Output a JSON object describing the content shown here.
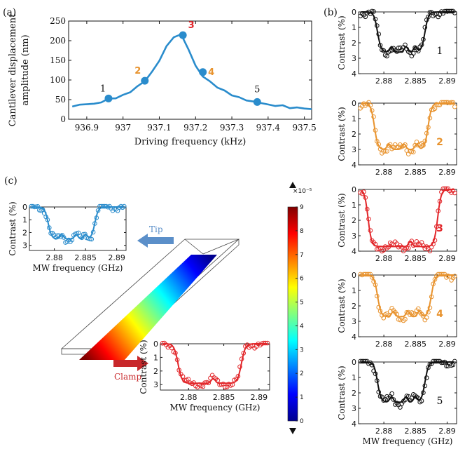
{
  "colors": {
    "blue": "#2a8ccc",
    "orange": "#e8932e",
    "red": "#e2262a",
    "black": "#111111",
    "tip_arrow": "#5b8fc9",
    "clamp_arrow": "#c8282b"
  },
  "panel_labels": {
    "a": "(a)",
    "b": "(b)",
    "c": "(c)"
  },
  "chart_data": [
    {
      "id": "a",
      "type": "line",
      "xlabel": "Driving frequency (kHz)",
      "ylabel_line1": "Cantilever displacement",
      "ylabel_line2": "amplitude (nm)",
      "xlim": [
        936.85,
        937.52
      ],
      "ylim": [
        0,
        250
      ],
      "xticks": [
        936.9,
        937.0,
        937.1,
        937.2,
        937.3,
        937.4,
        937.5
      ],
      "xtick_labels": [
        "936.9",
        "937",
        "937.1",
        "937.2",
        "937.3",
        "937.4",
        "937.5"
      ],
      "yticks": [
        0,
        50,
        100,
        150,
        200,
        250
      ],
      "ytick_labels": [
        "0",
        "50",
        "100",
        "150",
        "200",
        "250"
      ],
      "series": [
        {
          "color": "#2a8ccc",
          "x": [
            936.86,
            936.88,
            936.9,
            936.92,
            936.94,
            936.96,
            936.98,
            937.0,
            937.02,
            937.04,
            937.06,
            937.08,
            937.1,
            937.12,
            937.14,
            937.16,
            937.18,
            937.2,
            937.22,
            937.24,
            937.26,
            937.28,
            937.3,
            937.32,
            937.34,
            937.36,
            937.38,
            937.4,
            937.42,
            937.44,
            937.46,
            937.48,
            937.5,
            937.52
          ],
          "y": [
            35,
            36,
            38,
            40,
            44,
            50,
            56,
            61,
            70,
            83,
            98,
            120,
            150,
            185,
            210,
            215,
            180,
            135,
            110,
            95,
            82,
            72,
            62,
            55,
            49,
            44,
            41,
            38,
            35,
            33,
            31,
            29,
            27,
            26
          ]
        }
      ],
      "points": [
        {
          "label": "1",
          "x": 936.96,
          "y": 53,
          "color": "#2a8ccc",
          "label_color": "#111111"
        },
        {
          "label": "2",
          "x": 937.06,
          "y": 98,
          "color": "#2a8ccc",
          "label_color": "#e8932e"
        },
        {
          "label": "3",
          "x": 937.165,
          "y": 214,
          "color": "#2a8ccc",
          "label_color": "#e2262a"
        },
        {
          "label": "4",
          "x": 937.22,
          "y": 120,
          "color": "#2a8ccc",
          "label_color": "#e8932e"
        },
        {
          "label": "5",
          "x": 937.37,
          "y": 44,
          "color": "#2a8ccc",
          "label_color": "#111111"
        }
      ]
    },
    {
      "id": "b1",
      "type": "scatter",
      "index_label": "1",
      "color": "#111111",
      "ylabel": "Contrast (%)",
      "xlabel": "",
      "xlim": [
        2.876,
        2.8915
      ],
      "ylim": [
        0,
        4
      ],
      "xticks": [
        2.88,
        2.885,
        2.89
      ],
      "xtick_labels": [
        "2.88",
        "2.885",
        "2.89"
      ],
      "yticks": [
        0,
        1,
        2,
        3,
        4
      ],
      "ytick_labels": [
        "0",
        "1",
        "2",
        "3",
        "4"
      ],
      "dip": {
        "depth": 2.6,
        "start": 2.879,
        "end": 2.8865,
        "notches": [
          2.8812,
          2.8835,
          2.885
        ]
      }
    },
    {
      "id": "b2",
      "type": "scatter",
      "index_label": "2",
      "color": "#e8932e",
      "ylabel": "Contrast (%)",
      "xlabel": "",
      "xlim": [
        2.876,
        2.8915
      ],
      "ylim": [
        0,
        4
      ],
      "xticks": [
        2.88,
        2.885,
        2.89
      ],
      "xtick_labels": [
        "2.88",
        "2.885",
        "2.89"
      ],
      "yticks": [
        0,
        1,
        2,
        3,
        4
      ],
      "ytick_labels": [
        "0",
        "1",
        "2",
        "3",
        "4"
      ],
      "dip": {
        "depth": 3.0,
        "start": 2.8785,
        "end": 2.887,
        "notches": [
          2.8808,
          2.8832,
          2.8852
        ]
      }
    },
    {
      "id": "b3",
      "type": "scatter",
      "index_label": "3",
      "color": "#e2262a",
      "ylabel": "Contrast (%)",
      "xlabel": "",
      "xlim": [
        2.876,
        2.8915
      ],
      "ylim": [
        0,
        4
      ],
      "xticks": [
        2.88,
        2.885,
        2.89
      ],
      "xtick_labels": [
        "2.88",
        "2.885",
        "2.89"
      ],
      "yticks": [
        0,
        1,
        2,
        3,
        4
      ],
      "ytick_labels": [
        "0",
        "1",
        "2",
        "3",
        "4"
      ],
      "dip": {
        "depth": 3.7,
        "start": 2.8775,
        "end": 2.8885,
        "notches": [
          2.8842
        ]
      }
    },
    {
      "id": "b4",
      "type": "scatter",
      "index_label": "4",
      "color": "#e8932e",
      "ylabel": "Contrast (%)",
      "xlabel": "",
      "xlim": [
        2.876,
        2.8915
      ],
      "ylim": [
        0,
        4
      ],
      "xticks": [
        2.88,
        2.885,
        2.89
      ],
      "xtick_labels": [
        "2.88",
        "2.885",
        "2.89"
      ],
      "yticks": [
        0,
        1,
        2,
        3,
        4
      ],
      "ytick_labels": [
        "0",
        "1",
        "2",
        "3",
        "4"
      ],
      "dip": {
        "depth": 2.7,
        "start": 2.879,
        "end": 2.8875,
        "notches": [
          2.8815,
          2.8838,
          2.8856
        ]
      }
    },
    {
      "id": "b5",
      "type": "scatter",
      "index_label": "5",
      "color": "#111111",
      "ylabel": "Contrast (%)",
      "xlabel": "MW frequency (GHz)",
      "xlim": [
        2.876,
        2.8915
      ],
      "ylim": [
        0,
        4
      ],
      "xticks": [
        2.88,
        2.885,
        2.89
      ],
      "xtick_labels": [
        "2.88",
        "2.885",
        "2.89"
      ],
      "yticks": [
        0,
        1,
        2,
        3,
        4
      ],
      "ytick_labels": [
        "0",
        "1",
        "2",
        "3",
        "4"
      ],
      "dip": {
        "depth": 2.6,
        "start": 2.879,
        "end": 2.8865,
        "notches": [
          2.8812,
          2.8835,
          2.885
        ]
      }
    },
    {
      "id": "c_tip",
      "type": "scatter",
      "color": "#2a8ccc",
      "ylabel": "Contrast (%)",
      "xlabel": "MW frequency (GHz)",
      "xlim": [
        2.876,
        2.8915
      ],
      "ylim": [
        0,
        3.4
      ],
      "xticks": [
        2.88,
        2.885,
        2.89
      ],
      "xtick_labels": [
        "2.88",
        "2.885",
        "2.89"
      ],
      "yticks": [
        0,
        1,
        2,
        3
      ],
      "ytick_labels": [
        "0",
        "1",
        "2",
        "3"
      ],
      "dip": {
        "depth": 2.5,
        "start": 2.879,
        "end": 2.8865,
        "notches": [
          2.8812,
          2.8835,
          2.885
        ]
      }
    },
    {
      "id": "c_clamp",
      "type": "scatter",
      "color": "#e2262a",
      "ylabel": "Contrast (%)",
      "xlabel": "MW frequency (GHz)",
      "xlim": [
        2.876,
        2.8915
      ],
      "ylim": [
        0,
        3.4
      ],
      "xticks": [
        2.88,
        2.885,
        2.89
      ],
      "xtick_labels": [
        "2.88",
        "2.885",
        "2.89"
      ],
      "yticks": [
        0,
        1,
        2,
        3
      ],
      "ytick_labels": [
        "0",
        "1",
        "2",
        "3"
      ],
      "dip": {
        "depth": 2.9,
        "start": 2.8785,
        "end": 2.8875,
        "notches": [
          2.8835
        ]
      }
    },
    {
      "id": "colorbar",
      "type": "heatmap",
      "exponent_label": "×10⁻⁵",
      "ticks": [
        0,
        1,
        2,
        3,
        4,
        5,
        6,
        7,
        8,
        9
      ],
      "tick_labels": [
        "0",
        "1",
        "2",
        "3",
        "4",
        "5",
        "6",
        "7",
        "8",
        "9"
      ],
      "range": [
        0,
        9
      ],
      "colormap": [
        "#00008f",
        "#0000ff",
        "#0080ff",
        "#00ffff",
        "#80ff80",
        "#ffff00",
        "#ff8000",
        "#ff0000",
        "#800000"
      ]
    }
  ],
  "cantilever": {
    "tip_label": "Tip",
    "clamp_label": "Clamp"
  }
}
